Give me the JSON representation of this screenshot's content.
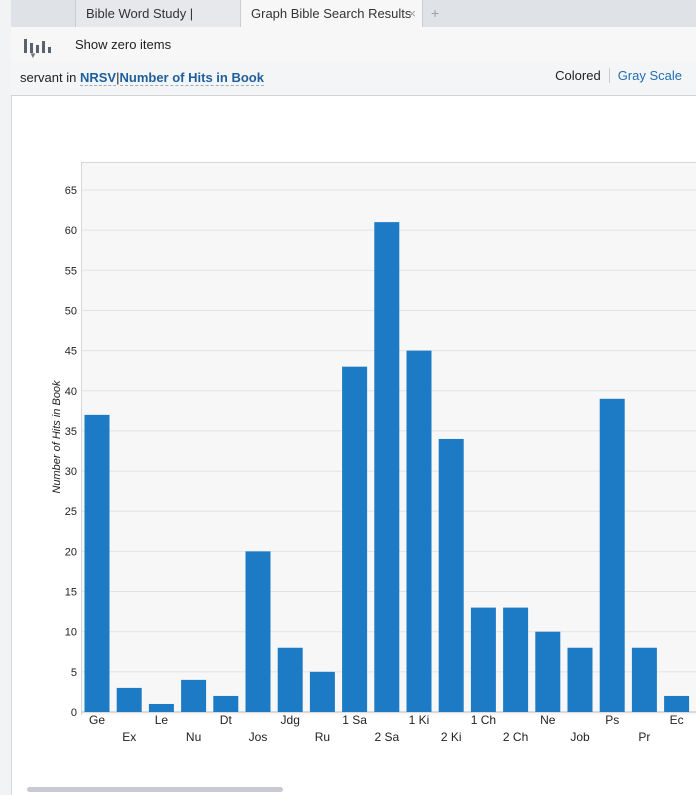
{
  "tabs": [
    {
      "label": "Bible Word Study | servant"
    },
    {
      "label": "Graph Bible Search Results",
      "close": "×"
    }
  ],
  "tab_add": "+",
  "toolbar": {
    "show_zero": "Show zero items"
  },
  "filter": {
    "term": "servant in ",
    "version": "NRSV",
    "sep": "|",
    "metric": "Number of Hits in Book",
    "colored": "Colored",
    "grayscale": "Gray Scale"
  },
  "colors": {
    "bar": "#1c7bc4",
    "link": "#1f5e9c"
  },
  "chart_data": {
    "type": "bar",
    "ylabel": "Number of Hits in Book",
    "ylim": [
      0,
      65
    ],
    "yticks": [
      0,
      5,
      10,
      15,
      20,
      25,
      30,
      35,
      40,
      45,
      50,
      55,
      60,
      65
    ],
    "grid": true,
    "categories": [
      "Ge",
      "Ex",
      "Le",
      "Nu",
      "Dt",
      "Jos",
      "Jdg",
      "Ru",
      "1 Sa",
      "2 Sa",
      "1 Ki",
      "2 Ki",
      "1 Ch",
      "2 Ch",
      "Ne",
      "Job",
      "Ps",
      "Pr",
      "Ec"
    ],
    "values": [
      37,
      3,
      1,
      4,
      2,
      20,
      8,
      5,
      43,
      61,
      45,
      34,
      13,
      13,
      10,
      8,
      39,
      8,
      2
    ]
  }
}
